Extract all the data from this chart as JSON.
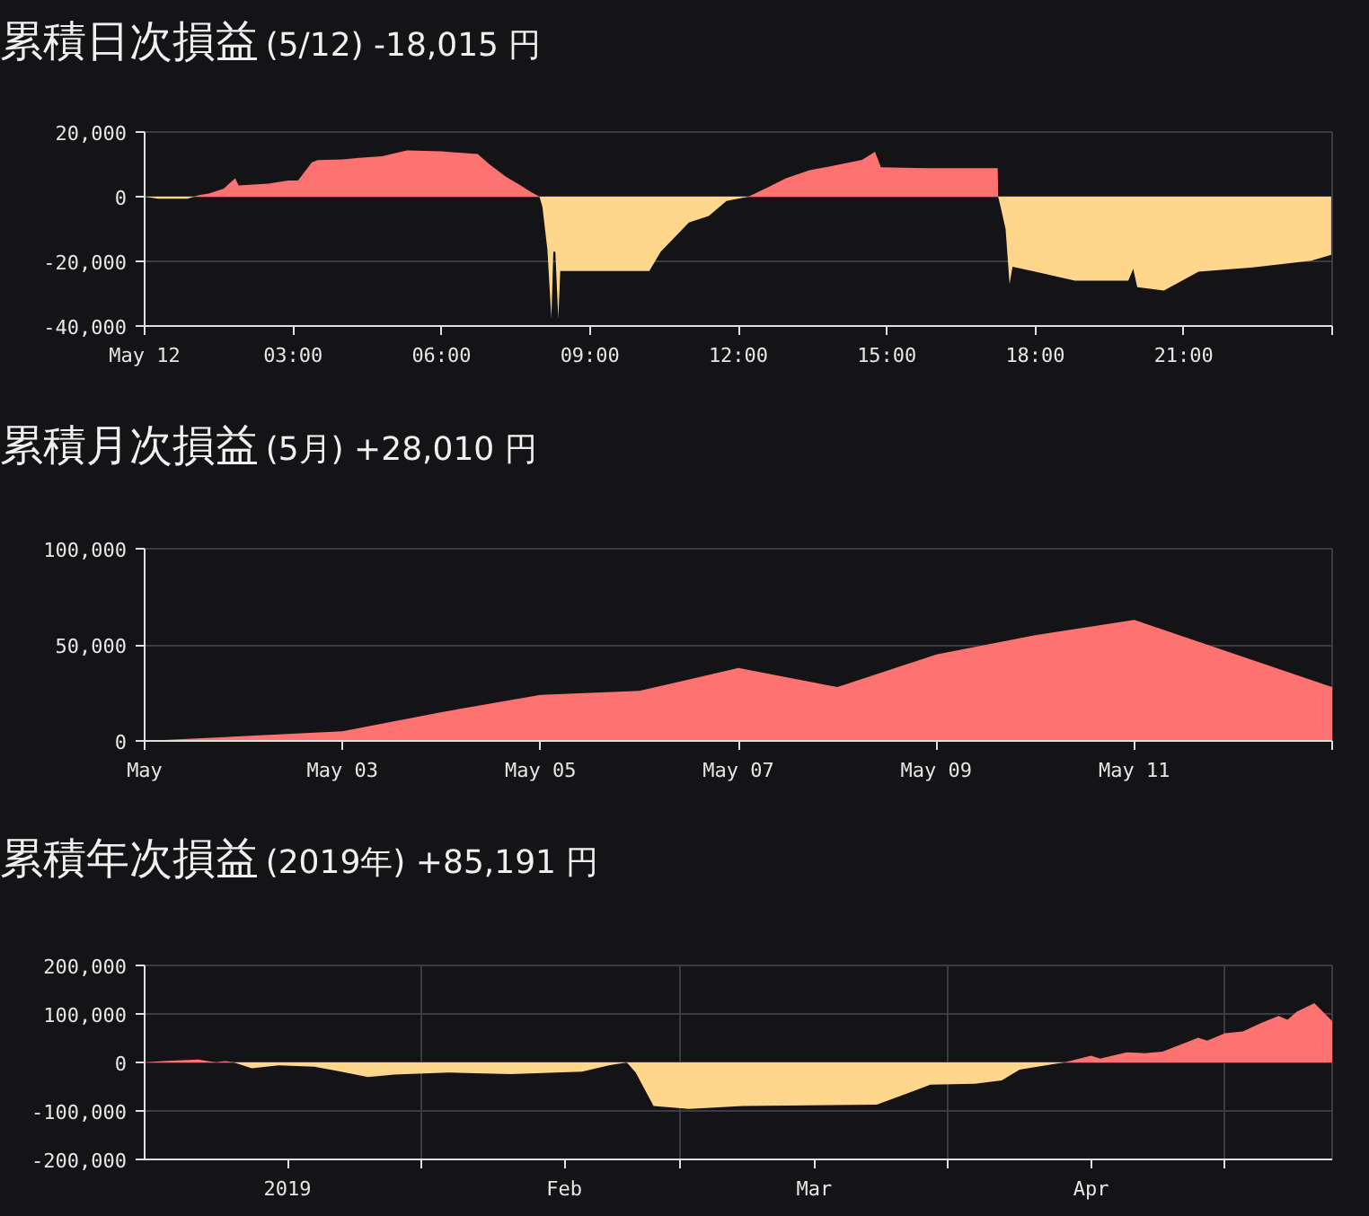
{
  "chart_data": [
    {
      "type": "area",
      "title": "累積日次損益",
      "subtitle": "(5/12) -18,015 円",
      "xlim": [
        0,
        24
      ],
      "xticks": [
        {
          "value": 0,
          "label": "May 12"
        },
        {
          "value": 3,
          "label": "03:00"
        },
        {
          "value": 6,
          "label": "06:00"
        },
        {
          "value": 9,
          "label": "09:00"
        },
        {
          "value": 12,
          "label": "12:00"
        },
        {
          "value": 15,
          "label": "15:00"
        },
        {
          "value": 18,
          "label": "18:00"
        },
        {
          "value": 21,
          "label": "21:00"
        },
        {
          "value": 24,
          "label": null
        }
      ],
      "ylim": [
        -40000,
        20000
      ],
      "yticks": [
        {
          "value": 20000,
          "label": "20,000"
        },
        0,
        {
          "value": -20000,
          "label": "-20,000"
        },
        {
          "value": -40000,
          "label": "-40,000"
        }
      ],
      "grid": true,
      "series": [
        {
          "color": "#ffd68c",
          "x": [
            0,
            0.27,
            0.5,
            0.87,
            1.0
          ],
          "values": [
            0,
            -600,
            -600,
            -600,
            0
          ]
        },
        {
          "color": "#ff7272",
          "x": [
            1.0,
            1.1,
            1.3,
            1.6,
            1.83,
            1.9,
            2.5,
            2.9,
            3.1,
            3.38,
            3.5,
            4.0,
            4.34,
            4.8,
            5.3,
            6.0,
            6.73,
            6.97,
            7.3,
            7.6,
            7.8,
            7.98
          ],
          "values": [
            0,
            500,
            1000,
            2500,
            5700,
            3500,
            4000,
            5000,
            5000,
            10600,
            11300,
            11500,
            12000,
            12500,
            14300,
            14000,
            13200,
            10000,
            6200,
            3500,
            1500,
            0
          ]
        },
        {
          "color": "#ffd68c",
          "x": [
            7.98,
            8.04,
            8.14,
            8.22,
            8.26,
            8.3,
            8.36,
            8.4,
            9.0,
            10.2,
            10.43,
            11.0,
            11.4,
            11.76,
            12.2
          ],
          "values": [
            0,
            -3200,
            -16400,
            -37700,
            -17000,
            -17000,
            -37700,
            -23000,
            -23000,
            -23000,
            -17000,
            -8000,
            -6000,
            -1300,
            0
          ]
        },
        {
          "color": "#ff7272",
          "x": [
            12.2,
            12.6,
            12.96,
            13.44,
            13.9,
            14.5,
            14.76,
            14.88,
            15.84,
            17.24,
            17.25
          ],
          "values": [
            0,
            2900,
            5700,
            8200,
            9500,
            11400,
            13900,
            9100,
            8800,
            8800,
            0
          ]
        },
        {
          "color": "#ffd68c",
          "x": [
            17.25,
            17.3,
            17.4,
            17.48,
            17.54,
            18.0,
            18.8,
            19.88,
            19.98,
            20.06,
            20.6,
            21.3,
            22.4,
            23.58,
            23.98
          ],
          "values": [
            0,
            -3200,
            -10000,
            -27000,
            -21700,
            -23200,
            -26000,
            -26000,
            -22300,
            -28000,
            -29000,
            -23200,
            -21900,
            -19800,
            -18000
          ]
        }
      ]
    },
    {
      "type": "area",
      "title": "累積月次損益",
      "subtitle": "(5月) +28,010 円",
      "xlim": [
        "2019-05-01",
        "2019-05-13"
      ],
      "xticks": [
        {
          "value": "2019-05-01",
          "label": "May"
        },
        {
          "value": "2019-05-03",
          "label": "May 03"
        },
        {
          "value": "2019-05-05",
          "label": "May 05"
        },
        {
          "value": "2019-05-07",
          "label": "May 07"
        },
        {
          "value": "2019-05-09",
          "label": "May 09"
        },
        {
          "value": "2019-05-11",
          "label": "May 11"
        },
        {
          "value": "2019-05-13",
          "label": null
        }
      ],
      "ylim": [
        0,
        100000
      ],
      "yticks": [
        0,
        {
          "value": 50000,
          "label": "50,000"
        },
        {
          "value": 100000,
          "label": "100,000"
        }
      ],
      "grid": true,
      "series": [
        {
          "color": "#ff7272",
          "x": [
            "2019-05-01",
            "2019-05-03",
            "2019-05-04",
            "2019-05-05",
            "2019-05-06",
            "2019-05-07",
            "2019-05-08",
            "2019-05-09",
            "2019-05-10",
            "2019-05-11",
            "2019-05-13"
          ],
          "values": [
            0,
            5000,
            15000,
            24000,
            26000,
            38000,
            28000,
            45000,
            55000,
            63000,
            28000
          ]
        }
      ]
    },
    {
      "type": "area",
      "title": "累積年次損益",
      "subtitle": "(2019年) +85,191 円",
      "xlim": [
        "2018-12-16",
        "2019-04-28"
      ],
      "xticks": [
        {
          "value": "2019-01-01",
          "label": "2019"
        },
        {
          "value": "2019-01-16",
          "label": null
        },
        {
          "value": "2019-02-01",
          "label": "Feb"
        },
        {
          "value": "2019-02-14",
          "label": null
        },
        {
          "value": "2019-03-01",
          "label": "Mar"
        },
        {
          "value": "2019-03-16",
          "label": null
        },
        {
          "value": "2019-04-01",
          "label": "Apr"
        },
        {
          "value": "2019-04-16",
          "label": null
        }
      ],
      "ylim": [
        -200000,
        200000
      ],
      "yticks": [
        {
          "value": 200000,
          "label": "200,000"
        },
        {
          "value": 100000,
          "label": "100,000"
        },
        0,
        {
          "value": -100000,
          "label": "-100,000"
        },
        {
          "value": -200000,
          "label": "-200,000"
        }
      ],
      "grid": true,
      "series": [
        {
          "color": "#ff7272",
          "x": [
            "2018-12-16",
            "2018-12-18",
            "2018-12-22",
            "2018-12-24",
            "2018-12-25",
            "2018-12-26"
          ],
          "values": [
            0,
            3000,
            6000,
            0,
            3000,
            0
          ]
        },
        {
          "color": "#ffd68c",
          "x": [
            "2018-12-26",
            "2018-12-28",
            "2018-12-31",
            "2019-01-04",
            "2019-01-07",
            "2019-01-10",
            "2019-01-13",
            "2019-01-19",
            "2019-01-26",
            "2019-02-03",
            "2019-02-06",
            "2019-02-08",
            "2019-02-09",
            "2019-02-11",
            "2019-02-15",
            "2019-02-21",
            "2019-03-08",
            "2019-03-14",
            "2019-03-19",
            "2019-03-22",
            "2019-03-24",
            "2019-03-28",
            "2019-03-29"
          ],
          "values": [
            0,
            -12000,
            -6000,
            -9000,
            -19000,
            -30000,
            -25000,
            -21000,
            -24000,
            -19000,
            -6000,
            0,
            -21000,
            -90000,
            -96000,
            -90000,
            -87000,
            -46000,
            -44000,
            -37000,
            -15000,
            -3000,
            0
          ]
        },
        {
          "color": "#ff7272",
          "x": [
            "2019-03-29",
            "2019-04-01",
            "2019-04-02",
            "2019-04-05",
            "2019-04-07",
            "2019-04-09",
            "2019-04-13",
            "2019-04-14",
            "2019-04-16",
            "2019-04-18",
            "2019-04-20",
            "2019-04-22",
            "2019-04-23",
            "2019-04-24",
            "2019-04-26",
            "2019-04-28"
          ],
          "values": [
            0,
            14000,
            8000,
            21000,
            19000,
            22000,
            51000,
            45000,
            60000,
            64000,
            81000,
            96000,
            88000,
            104000,
            122000,
            85000
          ]
        }
      ]
    }
  ]
}
